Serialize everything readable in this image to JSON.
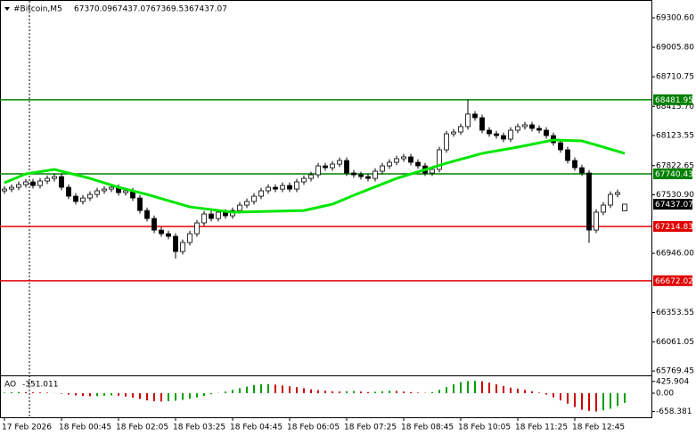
{
  "chart_data": {
    "type": "candlestick",
    "title": "#Bitcoin,M5",
    "open": [
      67570,
      67588,
      67606,
      67633,
      67660,
      67624,
      67669,
      67695,
      67713,
      67606,
      67517,
      67464,
      67499,
      67535,
      67571,
      67588,
      67606,
      67553,
      67571,
      67499,
      67374,
      67294,
      67178,
      67142,
      67116,
      66964,
      67054,
      67142,
      67250,
      67339,
      67294,
      67357,
      67321,
      67374,
      67428,
      67464,
      67517,
      67571,
      67606,
      67588,
      67624,
      67588,
      67660,
      67695,
      67731,
      67820,
      67802,
      67838,
      67874,
      67749,
      67731,
      67713,
      67695,
      67767,
      67820,
      67856,
      67892,
      67910,
      67856,
      67820,
      67749,
      67785,
      67981,
      68141,
      68159,
      68213,
      68338,
      68302,
      68177,
      68141,
      68123,
      68088,
      68177,
      68213,
      68231,
      68195,
      68177,
      68123,
      68052,
      67981,
      67874,
      67802,
      67749,
      67178,
      67357,
      67428,
      67535,
      67370.09
    ],
    "high": [
      67618,
      67636,
      67663,
      67690,
      67690,
      67699,
      67725,
      67743,
      67743,
      67636,
      67547,
      67529,
      67565,
      67601,
      67618,
      67636,
      67636,
      67601,
      67601,
      67529,
      67404,
      67324,
      67208,
      67172,
      67146,
      67084,
      67172,
      67280,
      67369,
      67369,
      67387,
      67387,
      67404,
      67458,
      67494,
      67547,
      67601,
      67636,
      67636,
      67654,
      67654,
      67690,
      67725,
      67761,
      67850,
      67850,
      67868,
      67904,
      67904,
      67779,
      67761,
      67743,
      67797,
      67850,
      67886,
      67922,
      67940,
      67940,
      67886,
      67850,
      67815,
      68011,
      68171,
      68189,
      68243,
      68480,
      68368,
      68332,
      68207,
      68171,
      68153,
      68207,
      68243,
      68261,
      68261,
      68225,
      68207,
      68153,
      68082,
      68011,
      67904,
      67832,
      67779,
      67387,
      67458,
      67565,
      67583,
      67437.07
    ],
    "low": [
      67540,
      67558,
      67576,
      67603,
      67594,
      67594,
      67639,
      67665,
      67576,
      67487,
      67434,
      67434,
      67469,
      67505,
      67541,
      67558,
      67523,
      67523,
      67469,
      67344,
      67264,
      67148,
      67112,
      67086,
      66893,
      66934,
      67024,
      67112,
      67220,
      67264,
      67264,
      67291,
      67291,
      67344,
      67398,
      67434,
      67487,
      67541,
      67558,
      67558,
      67558,
      67558,
      67630,
      67665,
      67701,
      67772,
      67772,
      67808,
      67719,
      67701,
      67683,
      67665,
      67665,
      67737,
      67790,
      67826,
      67862,
      67826,
      67790,
      67719,
      67719,
      67755,
      67951,
      68111,
      68129,
      68183,
      68272,
      68147,
      68111,
      68093,
      68058,
      68058,
      68147,
      68183,
      68165,
      68147,
      68093,
      68022,
      67951,
      67844,
      67772,
      67719,
      67050,
      67148,
      67327,
      67398,
      67505,
      67369.53
    ],
    "close": [
      67588,
      67606,
      67633,
      67660,
      67624,
      67669,
      67695,
      67713,
      67606,
      67517,
      67464,
      67499,
      67535,
      67571,
      67588,
      67606,
      67553,
      67571,
      67499,
      67374,
      67294,
      67178,
      67142,
      67116,
      66964,
      67054,
      67142,
      67250,
      67339,
      67294,
      67357,
      67321,
      67374,
      67428,
      67464,
      67517,
      67571,
      67606,
      67588,
      67624,
      67588,
      67660,
      67695,
      67731,
      67820,
      67802,
      67838,
      67874,
      67749,
      67731,
      67713,
      67695,
      67767,
      67820,
      67856,
      67892,
      67910,
      67856,
      67820,
      67749,
      67785,
      67981,
      68141,
      68159,
      68213,
      68338,
      68302,
      68177,
      68141,
      68123,
      68088,
      68177,
      68213,
      68231,
      68195,
      68177,
      68123,
      68052,
      67981,
      67874,
      67802,
      67749,
      67178,
      67357,
      67428,
      67535,
      67553,
      67437.07
    ],
    "xlim": [
      -0.625,
      90.75
    ],
    "xticks": [
      {
        "value": 0,
        "label": "17 Feb 2026"
      },
      {
        "value": 8,
        "label": "18 Feb 00:45"
      },
      {
        "value": 16,
        "label": "18 Feb 02:05"
      },
      {
        "value": 24,
        "label": "18 Feb 03:25"
      },
      {
        "value": 32,
        "label": "18 Feb 04:45"
      },
      {
        "value": 40,
        "label": "18 Feb 06:05"
      },
      {
        "value": 48,
        "label": "18 Feb 07:25"
      },
      {
        "value": 56,
        "label": "18 Feb 08:45"
      },
      {
        "value": 64,
        "label": "18 Feb 10:05"
      },
      {
        "value": 72,
        "label": "18 Feb 11:25"
      },
      {
        "value": 80,
        "label": "18 Feb 12:45"
      }
    ],
    "ylim": [
      65725.4,
      69478.9
    ],
    "yticks": [
      {
        "value": 69300.6,
        "label": "69300.60"
      },
      {
        "value": 69005.8,
        "label": "69005.80"
      },
      {
        "value": 68710.75,
        "label": "68710.75"
      },
      {
        "value": 68415.7,
        "label": "68415.70"
      },
      {
        "value": 68123.55,
        "label": "68123.55"
      },
      {
        "value": 67822.65,
        "label": "67822.65"
      },
      {
        "value": 67530.9,
        "label": "67530.90"
      },
      {
        "value": 66946,
        "label": "66946.00"
      },
      {
        "value": 66353.55,
        "label": "66353.55"
      },
      {
        "value": 66061.05,
        "label": "66061.05"
      },
      {
        "value": 65769.45,
        "label": "65769.45"
      }
    ],
    "levels": [
      {
        "value": 68481.95,
        "color": "#008000"
      },
      {
        "value": 67740.43,
        "color": "#008000"
      },
      {
        "value": 67214.83,
        "color": "#e00000"
      },
      {
        "value": 66672.02,
        "color": "#e00000"
      }
    ],
    "ma": {
      "color": "#00e600",
      "x": [
        0,
        3,
        7,
        12,
        16,
        20,
        26,
        32,
        42,
        46,
        49,
        55,
        62,
        67,
        72,
        77,
        81,
        84,
        87
      ],
      "values": [
        67651,
        67740,
        67785,
        67695,
        67606,
        67535,
        67410,
        67357,
        67374,
        67437,
        67526,
        67695,
        67847,
        67945,
        68008,
        68079,
        68070,
        68008,
        67945
      ]
    },
    "ao": {
      "name": "AO",
      "up_color": "#00a000",
      "down_color": "#d00000",
      "values": [
        20,
        35,
        45,
        40,
        30,
        25,
        20,
        5,
        -20,
        -50,
        -80,
        -100,
        -110,
        -105,
        -90,
        -80,
        -90,
        -120,
        -160,
        -210,
        -260,
        -290,
        -300,
        -290,
        -270,
        -240,
        -200,
        -150,
        -100,
        -40,
        10,
        60,
        120,
        180,
        240,
        290,
        320,
        330,
        310,
        280,
        250,
        220,
        180,
        140,
        110,
        90,
        70,
        60,
        70,
        80,
        60,
        40,
        50,
        70,
        90,
        80,
        60,
        40,
        20,
        10,
        40,
        120,
        220,
        320,
        400,
        440,
        450,
        430,
        380,
        320,
        260,
        200,
        160,
        120,
        70,
        20,
        -50,
        -150,
        -260,
        -380,
        -500,
        -600,
        -640,
        -660,
        -620,
        -560,
        -460,
        -351.011
      ],
      "ylim": [
        -871,
        613
      ],
      "yticks": [
        425.904,
        {
          "value": 0,
          "label": "0.00"
        },
        -658.381
      ]
    }
  }
}
